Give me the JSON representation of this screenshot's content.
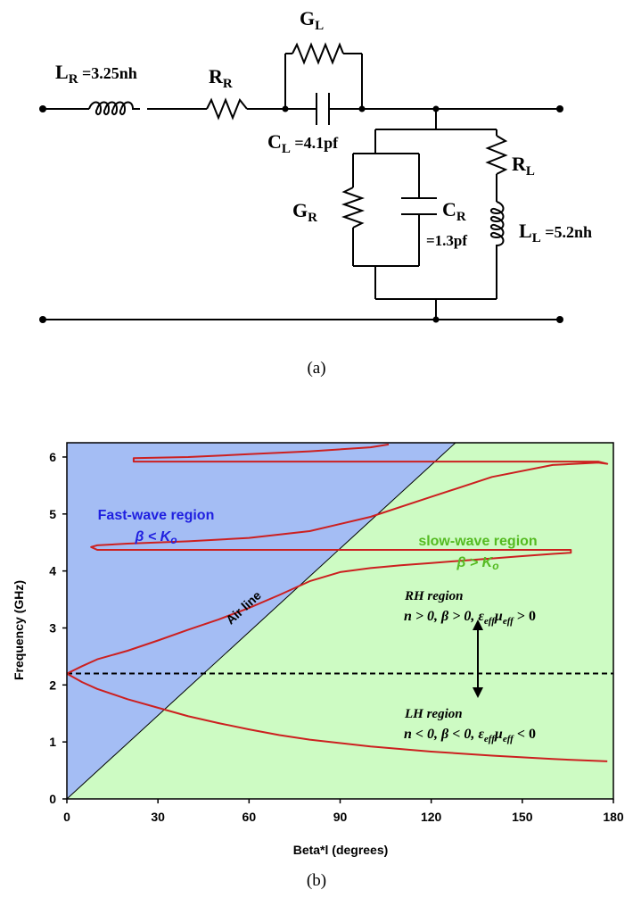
{
  "circuit": {
    "caption": "(a)",
    "lr_label": "L",
    "lr_sub": "R",
    "lr_value": " =3.25nh",
    "rr_label": "R",
    "rr_sub": "R",
    "gl_label": "G",
    "gl_sub": "L",
    "cl_label": "C",
    "cl_sub": "L",
    "cl_value": " =4.1pf",
    "gr_label": "G",
    "gr_sub": "R",
    "cr_label": "C",
    "cr_sub": "R",
    "cr_value": "=1.3pf",
    "rl_label": "R",
    "rl_sub": "L",
    "ll_label": "L",
    "ll_sub": "L",
    "ll_value": " =5.2nh"
  },
  "chart_caption": "(b)",
  "colors": {
    "fast_bg": "#a4bdf4",
    "slow_bg": "#cdfbc3",
    "curve": "#cc2020",
    "fast_text": "#2020e0",
    "slow_text": "#55bb22"
  },
  "chart_data": {
    "type": "line",
    "xlabel": "Beta*l  (degrees)",
    "ylabel": "Frequency  (GHz)",
    "xlim": [
      0,
      180
    ],
    "ylim": [
      0,
      6.25
    ],
    "xticks": [
      "0",
      "30",
      "60",
      "90",
      "120",
      "150",
      "180"
    ],
    "yticks": [
      "0",
      "1",
      "2",
      "3",
      "4",
      "5",
      "6"
    ],
    "grid": false,
    "air_line": {
      "label": "Air line",
      "x": [
        0,
        128
      ],
      "y": [
        0,
        6.25
      ]
    },
    "transition_freq": 2.2,
    "annotations": {
      "fast_title": "Fast-wave region",
      "fast_cond": "β < K",
      "fast_cond_sub": "o",
      "slow_title": "slow-wave region",
      "slow_cond": "β > K",
      "slow_cond_sub": "o",
      "rh_title": "RH region",
      "rh_pre": "n > 0, β > 0, ",
      "rh_eps": "ε",
      "rh_eff": "eff",
      "rh_mu": "μ",
      "rh_post": " > 0",
      "lh_title": "LH region",
      "lh_pre": "n < 0, β < 0, ",
      "lh_eps": "ε",
      "lh_eff": "eff",
      "lh_mu": "μ",
      "lh_post": " < 0"
    },
    "series": [
      {
        "x": [
          0,
          5,
          10,
          20,
          30,
          40,
          50,
          60,
          70,
          80,
          100,
          120,
          140,
          160,
          178
        ],
        "y": [
          2.2,
          2.05,
          1.93,
          1.75,
          1.6,
          1.45,
          1.33,
          1.22,
          1.12,
          1.04,
          0.92,
          0.83,
          0.76,
          0.7,
          0.66
        ]
      },
      {
        "x": [
          0,
          5,
          10,
          20,
          30,
          40,
          50,
          60,
          70,
          80,
          90,
          100,
          110,
          120,
          130,
          140,
          150,
          160,
          166,
          166,
          150,
          120,
          90,
          60,
          30,
          10,
          8,
          10,
          20,
          40,
          60,
          80,
          100,
          120,
          140,
          160,
          175,
          178,
          175,
          150,
          120,
          90,
          60,
          22,
          22,
          40,
          60,
          80,
          100,
          106
        ],
        "y": [
          2.2,
          2.33,
          2.45,
          2.6,
          2.78,
          2.97,
          3.15,
          3.35,
          3.58,
          3.82,
          3.98,
          4.05,
          4.1,
          4.14,
          4.18,
          4.22,
          4.26,
          4.3,
          4.32,
          4.37,
          4.37,
          4.37,
          4.37,
          4.37,
          4.37,
          4.37,
          4.42,
          4.45,
          4.48,
          4.52,
          4.58,
          4.7,
          4.95,
          5.3,
          5.65,
          5.86,
          5.9,
          5.88,
          5.92,
          5.92,
          5.92,
          5.92,
          5.92,
          5.92,
          5.98,
          6.0,
          6.05,
          6.1,
          6.17,
          6.22
        ]
      }
    ]
  }
}
